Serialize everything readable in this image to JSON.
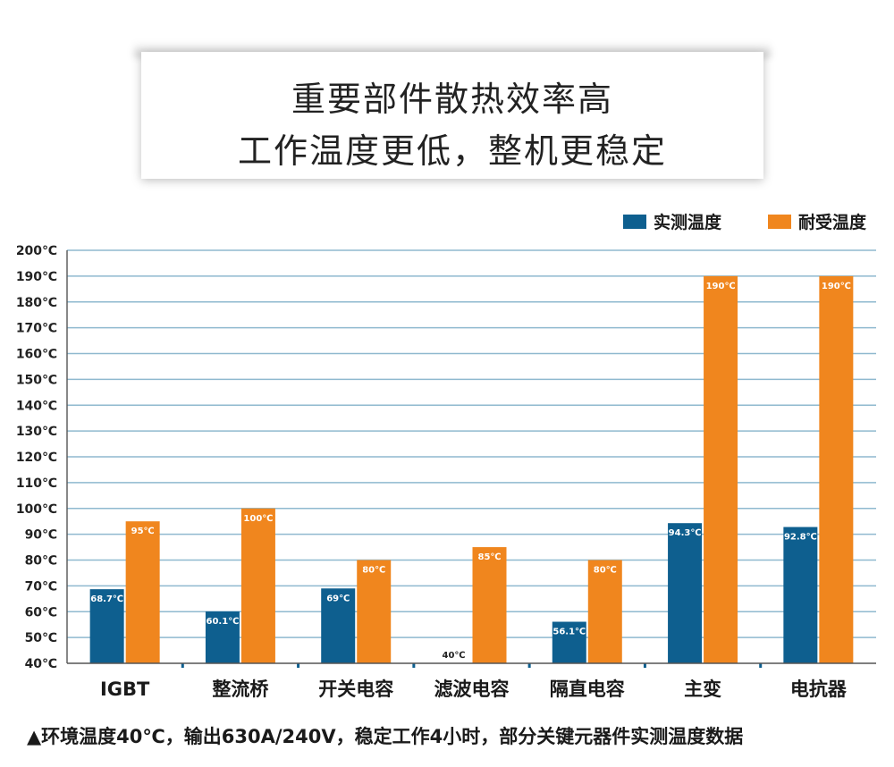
{
  "header": {
    "line1": "重要部件散热效率高",
    "line2": "工作温度更低，整机更稳定"
  },
  "chart_data": {
    "type": "bar",
    "title": "",
    "xlabel": "",
    "ylabel": "",
    "ylim": [
      40,
      200
    ],
    "yticks": [
      "40℃",
      "50℃",
      "60℃",
      "70℃",
      "80℃",
      "90℃",
      "100℃",
      "110℃",
      "120℃",
      "130℃",
      "140℃",
      "150℃",
      "160℃",
      "170℃",
      "180℃",
      "190℃",
      "200℃"
    ],
    "categories": [
      "IGBT",
      "整流桥",
      "开关电容",
      "滤波电容",
      "隔直电容",
      "主变",
      "电抗器"
    ],
    "series": [
      {
        "name": "实测温度",
        "color": "#0e5f8f",
        "values": [
          68.7,
          60.1,
          69,
          40,
          56.1,
          94.3,
          92.8
        ],
        "labels": [
          "68.7℃",
          "60.1℃",
          "69℃",
          "40℃",
          "56.1℃",
          "94.3℃",
          "92.8℃"
        ]
      },
      {
        "name": "耐受温度",
        "color": "#f0861e",
        "values": [
          95,
          100,
          80,
          85,
          80,
          190,
          190
        ],
        "labels": [
          "95℃",
          "100℃",
          "80℃",
          "85℃",
          "80℃",
          "190℃",
          "190℃"
        ]
      }
    ],
    "grid": true,
    "legend": "top-right"
  },
  "footnote": "▲环境温度40℃，输出630A/240V，稳定工作4小时，部分关键元器件实测温度数据"
}
